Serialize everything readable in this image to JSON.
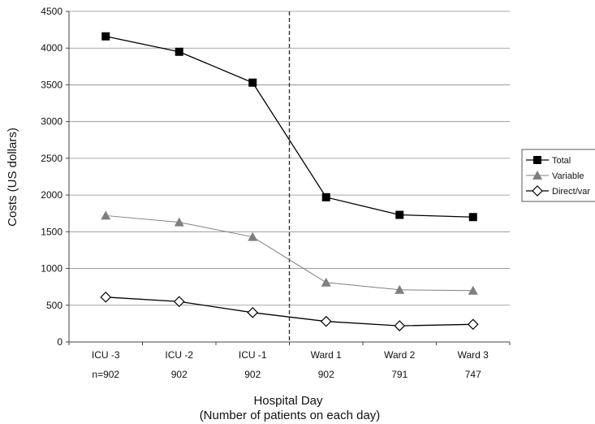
{
  "chart_data": {
    "type": "line",
    "categories": [
      "ICU -3",
      "ICU -2",
      "ICU -1",
      "Ward 1",
      "Ward 2",
      "Ward 3"
    ],
    "category_counts": [
      "n=902",
      "902",
      "902",
      "902",
      "791",
      "747"
    ],
    "xlabel_line1": "Hospital Day",
    "xlabel_line2": "(Number of patients on each day)",
    "ylabel": "Costs (US dollars)",
    "ylim": [
      0,
      4500
    ],
    "yticks": [
      0,
      500,
      1000,
      1500,
      2000,
      2500,
      3000,
      3500,
      4000,
      4500
    ],
    "grid": true,
    "legend_position": "right",
    "divider_after_category": "ICU -1",
    "series": [
      {
        "name": "Total",
        "marker": "square",
        "color": "#000000",
        "values": [
          4160,
          3950,
          3530,
          1970,
          1730,
          1700
        ]
      },
      {
        "name": "Variable",
        "marker": "triangle",
        "color": "#808080",
        "values": [
          1720,
          1630,
          1430,
          810,
          710,
          700
        ]
      },
      {
        "name": "Direct/var",
        "marker": "diamond",
        "color": "#000000",
        "values": [
          610,
          550,
          400,
          280,
          220,
          240
        ]
      }
    ]
  }
}
